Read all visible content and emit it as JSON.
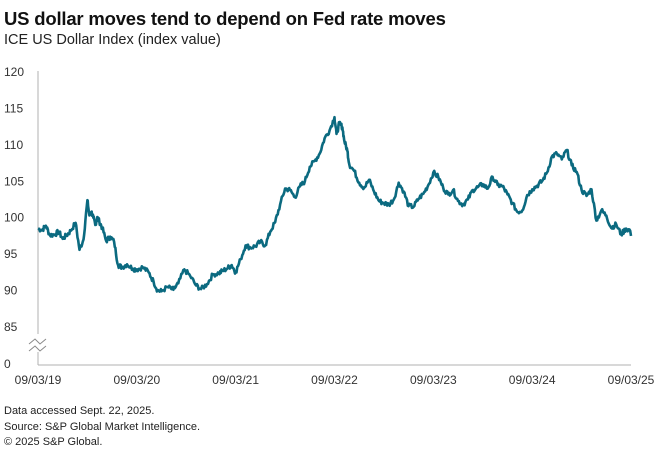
{
  "chart_data": {
    "type": "line",
    "title": "US dollar moves tend to depend on Fed rate moves",
    "subtitle": "ICE US Dollar Index (index value)",
    "xlabel": "",
    "ylabel": "",
    "x_ticks": [
      "09/03/19",
      "09/03/20",
      "09/03/21",
      "09/03/22",
      "09/03/23",
      "09/03/24",
      "09/03/25"
    ],
    "y_ticks": [
      "0",
      "85",
      "90",
      "95",
      "100",
      "105",
      "110",
      "115",
      "120"
    ],
    "ylim": [
      85,
      120
    ],
    "y_axis_break": "between 0 and 85",
    "grid": false,
    "legend": "none",
    "series": [
      {
        "name": "ICE US Dollar Index",
        "color": "#0b6a80",
        "x_years_since_start": [
          0.0,
          0.04,
          0.08,
          0.12,
          0.17,
          0.21,
          0.25,
          0.29,
          0.33,
          0.38,
          0.42,
          0.46,
          0.5,
          0.52,
          0.54,
          0.56,
          0.58,
          0.6,
          0.62,
          0.65,
          0.69,
          0.73,
          0.77,
          0.81,
          0.85,
          0.9,
          0.96,
          1.0,
          1.06,
          1.12,
          1.17,
          1.21,
          1.25,
          1.31,
          1.37,
          1.42,
          1.48,
          1.54,
          1.6,
          1.65,
          1.71,
          1.77,
          1.83,
          1.87,
          1.92,
          1.96,
          2.0,
          2.05,
          2.1,
          2.15,
          2.2,
          2.25,
          2.3,
          2.35,
          2.4,
          2.45,
          2.5,
          2.55,
          2.6,
          2.65,
          2.7,
          2.75,
          2.8,
          2.85,
          2.9,
          2.95,
          3.0,
          3.02,
          3.05,
          3.08,
          3.1,
          3.13,
          3.15,
          3.2,
          3.25,
          3.3,
          3.35,
          3.4,
          3.45,
          3.5,
          3.55,
          3.6,
          3.65,
          3.7,
          3.75,
          3.8,
          3.85,
          3.9,
          3.95,
          4.0,
          4.05,
          4.1,
          4.15,
          4.2,
          4.25,
          4.3,
          4.35,
          4.4,
          4.45,
          4.5,
          4.55,
          4.6,
          4.65,
          4.7,
          4.75,
          4.8,
          4.85,
          4.9,
          4.95,
          5.0,
          5.05,
          5.1,
          5.15,
          5.2,
          5.25,
          5.3,
          5.35,
          5.4,
          5.45,
          5.5,
          5.55,
          5.6,
          5.65,
          5.7,
          5.75,
          5.8,
          5.85,
          5.9,
          5.95,
          6.0
        ],
        "values": [
          98.5,
          98.3,
          98.9,
          97.6,
          97.7,
          98.1,
          97.1,
          97.6,
          98.2,
          99.3,
          95.6,
          97.0,
          102.4,
          100.3,
          100.8,
          100.0,
          99.0,
          100.1,
          99.5,
          98.6,
          96.8,
          97.4,
          96.7,
          93.5,
          93.2,
          93.6,
          93.0,
          92.9,
          93.2,
          92.5,
          91.2,
          90.0,
          89.9,
          90.5,
          90.1,
          91.0,
          92.9,
          92.0,
          90.7,
          90.2,
          90.9,
          92.2,
          92.4,
          92.7,
          93.1,
          93.5,
          92.5,
          94.3,
          96.2,
          95.9,
          96.1,
          96.7,
          96.2,
          98.1,
          99.4,
          101.8,
          104.0,
          103.8,
          102.8,
          104.3,
          105.0,
          107.0,
          107.8,
          108.8,
          110.9,
          112.0,
          113.8,
          111.5,
          113.0,
          112.4,
          110.5,
          109.2,
          107.3,
          106.4,
          104.8,
          104.1,
          105.2,
          103.6,
          102.3,
          102.0,
          101.8,
          102.5,
          104.8,
          103.6,
          101.6,
          101.5,
          102.6,
          103.3,
          104.5,
          106.2,
          105.6,
          104.1,
          103.2,
          103.8,
          102.3,
          101.8,
          102.5,
          103.8,
          104.2,
          104.6,
          104.0,
          105.6,
          104.5,
          104.3,
          103.2,
          102.0,
          100.8,
          101.0,
          103.1,
          103.9,
          104.4,
          105.0,
          106.2,
          108.4,
          108.8,
          108.0,
          109.3,
          107.2,
          106.3,
          103.8,
          103.0,
          103.9,
          99.6,
          101.0,
          100.3,
          98.6,
          99.1,
          97.7,
          98.5,
          98.2,
          97.9,
          97.5
        ]
      }
    ]
  },
  "footer": {
    "line1": "Data accessed Sept. 22, 2025.",
    "line2": "Source: S&P Global Market Intelligence.",
    "line3": "© 2025 S&P Global."
  }
}
